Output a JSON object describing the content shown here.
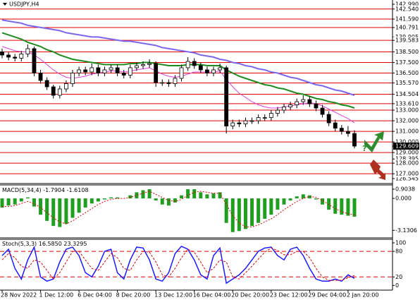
{
  "chart_data": [
    {
      "type": "candlestick",
      "title": "USDJPY,H4",
      "categories": [
        "28 Nov 2022",
        null,
        null,
        null,
        null,
        null,
        "1 Dec 12:00",
        null,
        null,
        null,
        null,
        null,
        "6 Dec 04:00",
        null,
        null,
        null,
        null,
        null,
        "8 Dec 20:00",
        null,
        null,
        null,
        null,
        null,
        "13 Dec 12:00",
        null,
        null,
        null,
        null,
        null,
        "16 Dec 04:00",
        null,
        null,
        null,
        null,
        null,
        "20 Dec 20:00",
        null,
        null,
        null,
        null,
        null,
        "23 Dec 12:00",
        null,
        null,
        null,
        null,
        null,
        "29 Dec 04:00",
        null,
        null,
        null,
        null,
        null,
        "2 Jan 20:00",
        null
      ],
      "open": [
        138.5,
        138.2,
        138.0,
        137.9,
        138.3,
        138.8,
        136.5,
        135.8,
        135.2,
        134.4,
        135.0,
        135.5,
        136.5,
        136.8,
        136.6,
        137.0,
        136.5,
        136.8,
        137.0,
        136.5,
        136.3,
        137.0,
        137.2,
        137.3,
        137.4,
        135.6,
        135.6,
        135.5,
        136.0,
        137.0,
        137.6,
        137.2,
        136.8,
        136.5,
        136.8,
        137.0,
        131.5,
        131.8,
        131.7,
        132.0,
        132.0,
        132.3,
        132.3,
        132.7,
        133.0,
        133.3,
        133.5,
        133.8,
        134.0,
        133.6,
        133.2,
        132.6,
        131.8,
        131.3,
        131.0,
        130.8
      ],
      "high": [
        138.8,
        138.5,
        138.3,
        138.6,
        139.2,
        139.0,
        136.8,
        136.1,
        135.4,
        135.3,
        135.8,
        136.8,
        137.1,
        137.1,
        137.4,
        137.3,
        137.1,
        137.3,
        137.3,
        136.8,
        137.3,
        137.5,
        137.6,
        137.8,
        137.6,
        135.9,
        135.9,
        136.3,
        137.3,
        138.0,
        137.9,
        137.5,
        137.1,
        137.1,
        137.4,
        137.2,
        132.1,
        132.1,
        132.3,
        132.3,
        132.6,
        132.6,
        133.0,
        133.3,
        133.6,
        133.8,
        134.1,
        134.4,
        134.3,
        133.9,
        133.5,
        132.9,
        132.1,
        131.6,
        131.5,
        131.1
      ],
      "low": [
        137.9,
        137.7,
        137.6,
        137.6,
        138.0,
        136.2,
        135.5,
        134.9,
        134.1,
        134.1,
        134.7,
        135.2,
        136.2,
        136.3,
        136.3,
        136.2,
        136.2,
        136.5,
        136.2,
        136.0,
        136.0,
        136.7,
        136.9,
        137.0,
        135.2,
        135.3,
        135.2,
        135.2,
        135.7,
        136.7,
        136.9,
        136.5,
        136.2,
        136.2,
        136.5,
        130.8,
        131.2,
        131.4,
        131.4,
        131.7,
        131.7,
        132.0,
        132.0,
        132.4,
        132.7,
        133.0,
        133.2,
        133.5,
        133.3,
        132.9,
        132.3,
        131.5,
        131.0,
        130.7,
        130.5,
        129.4
      ],
      "close": [
        138.2,
        138.0,
        137.9,
        138.3,
        138.8,
        136.5,
        135.8,
        135.2,
        134.4,
        135.0,
        135.5,
        136.5,
        136.8,
        136.6,
        137.0,
        136.5,
        136.8,
        137.0,
        136.5,
        136.3,
        137.0,
        137.2,
        137.3,
        137.4,
        135.6,
        135.6,
        135.5,
        136.0,
        137.0,
        137.6,
        137.2,
        136.8,
        136.5,
        136.8,
        137.0,
        131.5,
        131.8,
        131.7,
        132.0,
        132.0,
        132.3,
        132.3,
        132.7,
        133.0,
        133.3,
        133.5,
        133.8,
        134.0,
        133.6,
        133.2,
        132.6,
        131.8,
        131.3,
        131.0,
        130.8,
        129.609
      ],
      "moving_averages": [
        {
          "color": "#7b68ee",
          "values": [
            141.5,
            141.4,
            141.3,
            141.2,
            141.0,
            140.9,
            140.8,
            140.7,
            140.6,
            140.5,
            140.3,
            140.2,
            140.1,
            140.0,
            139.9,
            139.9,
            139.8,
            139.7,
            139.6,
            139.5,
            139.5,
            139.4,
            139.3,
            139.2,
            139.1,
            138.9,
            138.8,
            138.7,
            138.6,
            138.5,
            138.4,
            138.2,
            138.1,
            138.0,
            137.8,
            137.7,
            137.5,
            137.4,
            137.2,
            137.1,
            136.9,
            136.8,
            136.6,
            136.5,
            136.3,
            136.1,
            136.0,
            135.8,
            135.6,
            135.4,
            135.3,
            135.1,
            134.9,
            134.8,
            134.6,
            134.4
          ]
        },
        {
          "color": "#1e8c1e",
          "values": [
            140.3,
            140.1,
            139.9,
            139.7,
            139.4,
            139.2,
            139.0,
            138.7,
            138.5,
            138.2,
            138.0,
            137.8,
            137.7,
            137.6,
            137.5,
            137.4,
            137.3,
            137.3,
            137.3,
            137.3,
            137.4,
            137.4,
            137.5,
            137.5,
            137.4,
            137.3,
            137.2,
            137.2,
            137.2,
            137.3,
            137.3,
            137.3,
            137.2,
            137.2,
            137.2,
            136.8,
            136.5,
            136.2,
            136.0,
            135.8,
            135.6,
            135.4,
            135.3,
            135.1,
            135.0,
            134.8,
            134.6,
            134.5,
            134.3,
            134.1,
            134.0,
            133.8,
            133.7,
            133.5,
            133.4,
            133.2
          ]
        },
        {
          "color": "#e040e0",
          "values": [
            139.0,
            138.8,
            138.6,
            138.5,
            138.5,
            138.2,
            137.8,
            137.3,
            136.8,
            136.4,
            136.1,
            136.0,
            136.1,
            136.2,
            136.4,
            136.5,
            136.6,
            136.7,
            136.7,
            136.6,
            136.7,
            136.8,
            136.9,
            137.0,
            136.7,
            136.4,
            136.2,
            136.1,
            136.2,
            136.4,
            136.6,
            136.6,
            136.6,
            136.6,
            136.7,
            135.9,
            135.2,
            134.6,
            134.2,
            133.8,
            133.5,
            133.3,
            133.2,
            133.2,
            133.3,
            133.4,
            133.5,
            133.6,
            133.7,
            133.6,
            133.4,
            133.1,
            132.8,
            132.5,
            132.2,
            131.8
          ]
        }
      ],
      "ylim": [
        126.545,
        142.99
      ],
      "yticks": [
        {
          "value": 142.99,
          "label": "142.990"
        },
        139.905,
        128.395,
        126.545
      ],
      "level_color": "#e00000",
      "levels": [
        {
          "value": 142.54,
          "label": "142.540"
        },
        {
          "value": 141.59,
          "label": "141.590"
        },
        140.791,
        139.583,
        {
          "value": 138.5,
          "label": "138.500"
        },
        {
          "value": 137.5,
          "label": "137.500"
        },
        {
          "value": 136.5,
          "label": "136.500"
        },
        {
          "value": 135.57,
          "label": "135.570"
        },
        134.504,
        {
          "value": 133.61,
          "label": "133.610"
        },
        {
          "value": 133,
          "label": "133.000"
        },
        {
          "value": 132,
          "label": "132.000"
        },
        {
          "value": 131,
          "label": "131.000"
        },
        {
          "value": 130,
          "label": "130.000"
        },
        {
          "value": 129,
          "label": "129.000"
        },
        {
          "value": 128,
          "label": "128.000"
        },
        {
          "value": 127,
          "label": "127.000"
        }
      ],
      "annotation": "?"
    },
    {
      "type": "macd",
      "title": "MACD(5,34,4)",
      "ylim": [
        -3.8,
        1.25
      ],
      "yticks": [
        0.9038,
        {
          "value": 0,
          "label": "0.000"
        },
        -3.1306
      ],
      "series": [
        {
          "color": "#1ea01e",
          "values": [
            -0.9,
            -0.7,
            -0.6,
            -0.3,
            0.1,
            -0.8,
            -1.6,
            -2.2,
            -2.7,
            -2.8,
            -2.5,
            -1.9,
            -1.4,
            -0.9,
            -0.5,
            -0.3,
            -0.1,
            0.1,
            0.1,
            0.0,
            0.3,
            0.6,
            0.8,
            0.9,
            -0.2,
            -0.6,
            -0.7,
            -0.4,
            0.3,
            0.9,
            0.9,
            0.6,
            0.4,
            0.5,
            0.6,
            -2.4,
            -3.3,
            -3.2,
            -3.0,
            -2.7,
            -2.4,
            -2.0,
            -1.6,
            -1.1,
            -0.6,
            -0.2,
            0.2,
            0.4,
            0.3,
            -0.1,
            -0.6,
            -1.1,
            -1.5,
            -1.6,
            -1.7,
            -1.7904
          ]
        },
        {
          "color": "#e00000",
          "values": [
            -0.8,
            -0.8,
            -0.7,
            -0.5,
            -0.3,
            -0.5,
            -0.9,
            -1.4,
            -1.9,
            -2.3,
            -2.5,
            -2.2,
            -1.8,
            -1.4,
            -1.0,
            -0.6,
            -0.3,
            -0.1,
            0.0,
            0.0,
            0.1,
            0.3,
            0.5,
            0.7,
            0.4,
            0.1,
            -0.2,
            -0.3,
            -0.1,
            0.3,
            0.6,
            0.7,
            0.6,
            0.5,
            0.5,
            -0.6,
            -1.7,
            -2.4,
            -2.8,
            -2.8,
            -2.6,
            -2.3,
            -2.0,
            -1.6,
            -1.1,
            -0.7,
            -0.3,
            0.0,
            0.2,
            0.1,
            -0.2,
            -0.6,
            -1.0,
            -1.3,
            -1.5,
            -1.6108
          ]
        }
      ]
    },
    {
      "type": "stochastic",
      "title": "Stoch(5,3,3)",
      "readout": [
        "16.5850",
        "23.3295"
      ],
      "ylim": [
        -11,
        110
      ],
      "yticks": [
        100,
        80,
        20,
        0
      ],
      "levels": [
        80,
        20
      ],
      "level_color": "#e00000",
      "series": [
        {
          "color": "#1a1aff",
          "values": [
            70,
            85,
            40,
            15,
            60,
            90,
            20,
            10,
            15,
            55,
            85,
            90,
            70,
            30,
            20,
            45,
            80,
            85,
            30,
            15,
            60,
            90,
            88,
            60,
            15,
            10,
            30,
            75,
            92,
            85,
            60,
            25,
            15,
            70,
            88,
            5,
            15,
            25,
            40,
            60,
            80,
            88,
            90,
            70,
            60,
            85,
            90,
            70,
            40,
            15,
            10,
            10,
            15,
            10,
            25,
            16.585
          ]
        },
        {
          "color": "#e00000",
          "values": [
            60,
            75,
            65,
            45,
            40,
            60,
            55,
            35,
            15,
            30,
            55,
            80,
            80,
            60,
            40,
            35,
            55,
            75,
            65,
            40,
            35,
            60,
            80,
            78,
            55,
            25,
            20,
            40,
            65,
            85,
            78,
            55,
            30,
            40,
            60,
            55,
            20,
            15,
            30,
            45,
            62,
            78,
            88,
            82,
            72,
            72,
            80,
            80,
            65,
            40,
            20,
            12,
            12,
            12,
            18,
            23.3295
          ]
        }
      ]
    }
  ]
}
